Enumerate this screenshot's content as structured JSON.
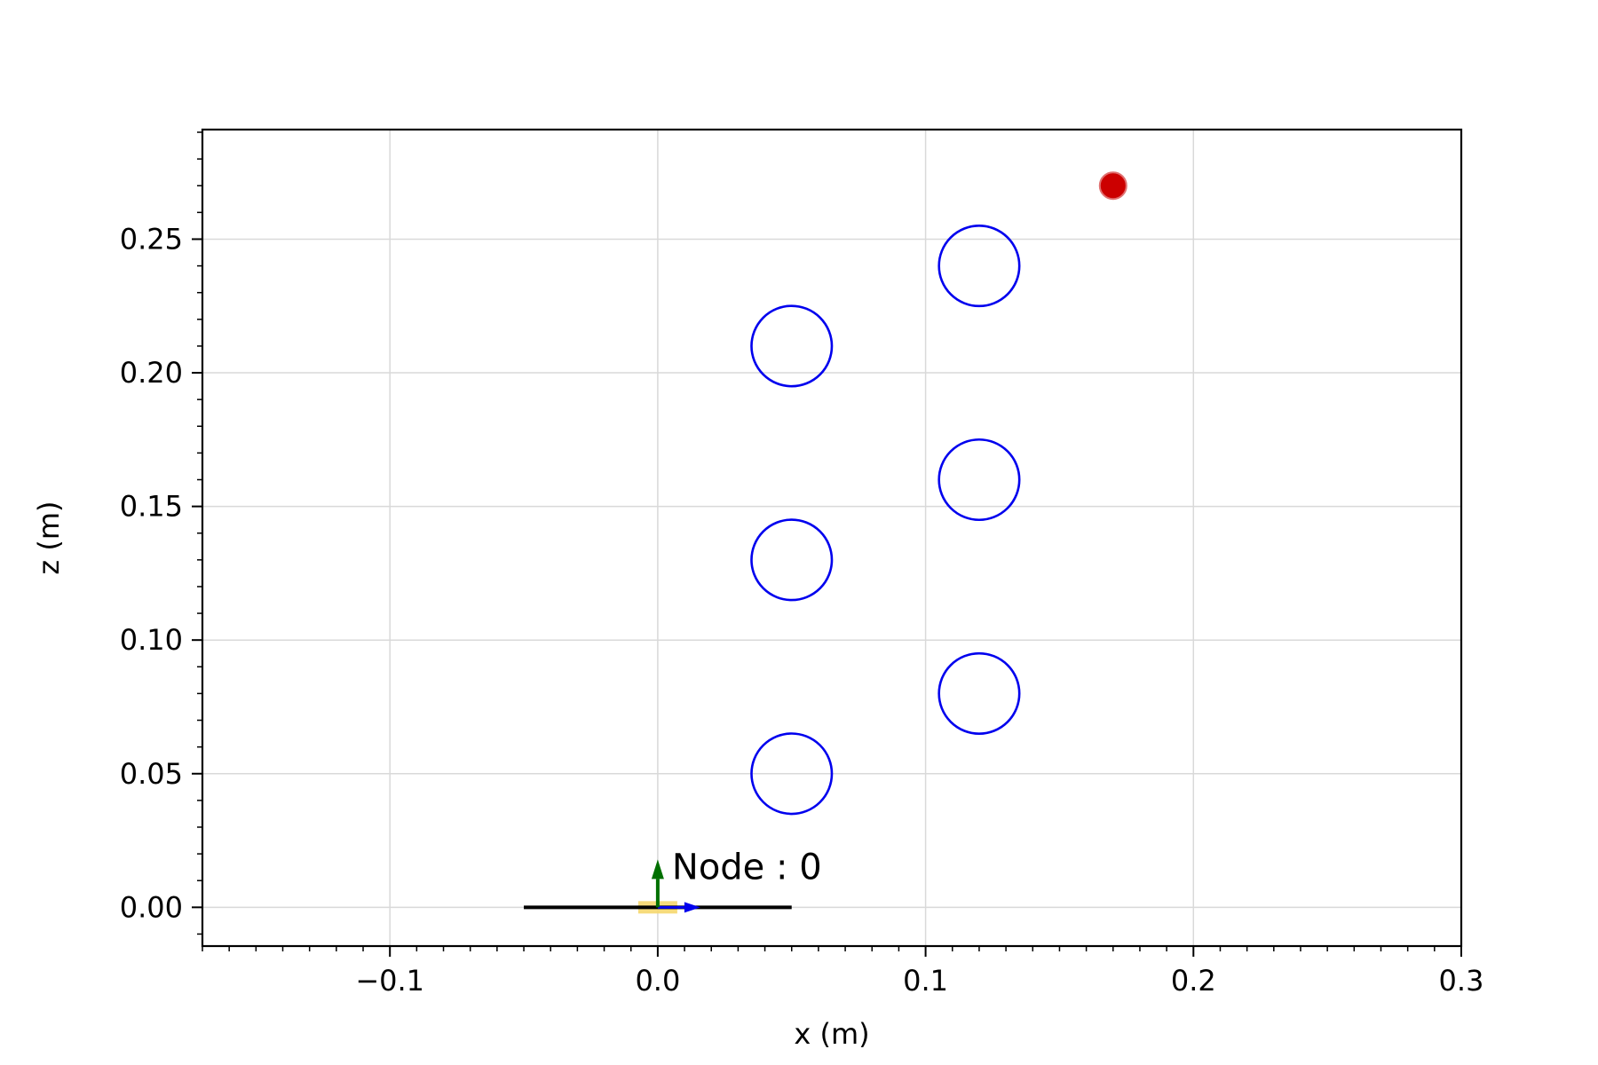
{
  "chart_data": {
    "type": "scatter",
    "xlabel": "x (m)",
    "ylabel": "z (m)",
    "xlim": [
      -0.17,
      0.3
    ],
    "ylim": [
      -0.0145,
      0.291
    ],
    "x_ticks": [
      -0.1,
      0.0,
      0.1,
      0.2,
      0.3
    ],
    "x_tick_labels": [
      "−0.1",
      "0.0",
      "0.1",
      "0.2",
      "0.3"
    ],
    "y_ticks": [
      0.0,
      0.05,
      0.1,
      0.15,
      0.2,
      0.25
    ],
    "y_tick_labels": [
      "0.00",
      "0.05",
      "0.10",
      "0.15",
      "0.20",
      "0.25"
    ],
    "x_minor_step": 0.01,
    "y_minor_step": 0.01,
    "grid": true,
    "circles": [
      {
        "x": 0.05,
        "z": 0.05,
        "r": 0.015
      },
      {
        "x": 0.05,
        "z": 0.13,
        "r": 0.015
      },
      {
        "x": 0.05,
        "z": 0.21,
        "r": 0.015
      },
      {
        "x": 0.12,
        "z": 0.08,
        "r": 0.015
      },
      {
        "x": 0.12,
        "z": 0.16,
        "r": 0.015
      },
      {
        "x": 0.12,
        "z": 0.24,
        "r": 0.015
      }
    ],
    "target_point": {
      "x": 0.17,
      "z": 0.27
    },
    "node": {
      "label": "Node : 0",
      "x": 0.0,
      "z": 0.0,
      "segment": [
        -0.05,
        0.05
      ]
    },
    "colors": {
      "circle": "#0000ee",
      "target": "#cc0000",
      "segment": "#000000",
      "z_arrow": "#007000",
      "x_arrow": "#0000ee",
      "node_marker": "#f5d76e",
      "grid": "#d9d9d9"
    }
  }
}
